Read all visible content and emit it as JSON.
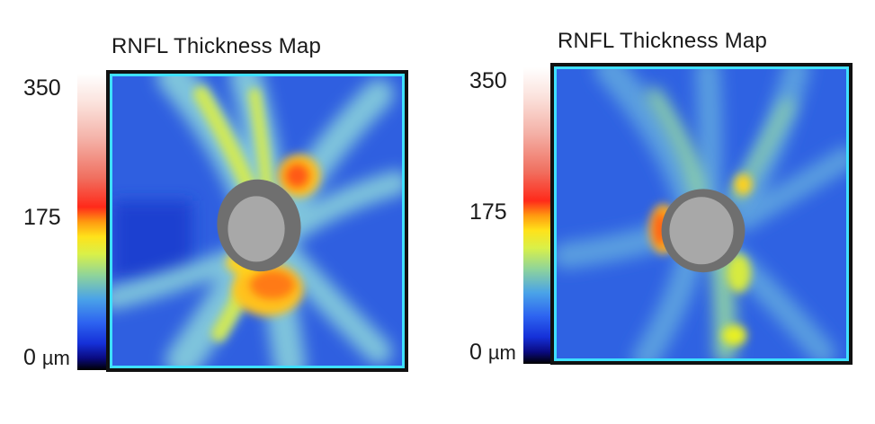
{
  "maps": [
    {
      "title": "RNFL Thickness Map",
      "scale": {
        "max_label": "350",
        "mid_label": "175",
        "min_label": "0",
        "unit": "µm"
      }
    },
    {
      "title": "RNFL Thickness Map",
      "scale": {
        "max_label": "350",
        "mid_label": "175",
        "min_label": "0",
        "unit": "µm"
      }
    }
  ],
  "colors": {
    "frame_border": "#3fe0ff",
    "background_map": "#2f5fe0",
    "optic_disc_rim": "#6f6f6f",
    "optic_disc_cup": "#a8a8a8"
  }
}
